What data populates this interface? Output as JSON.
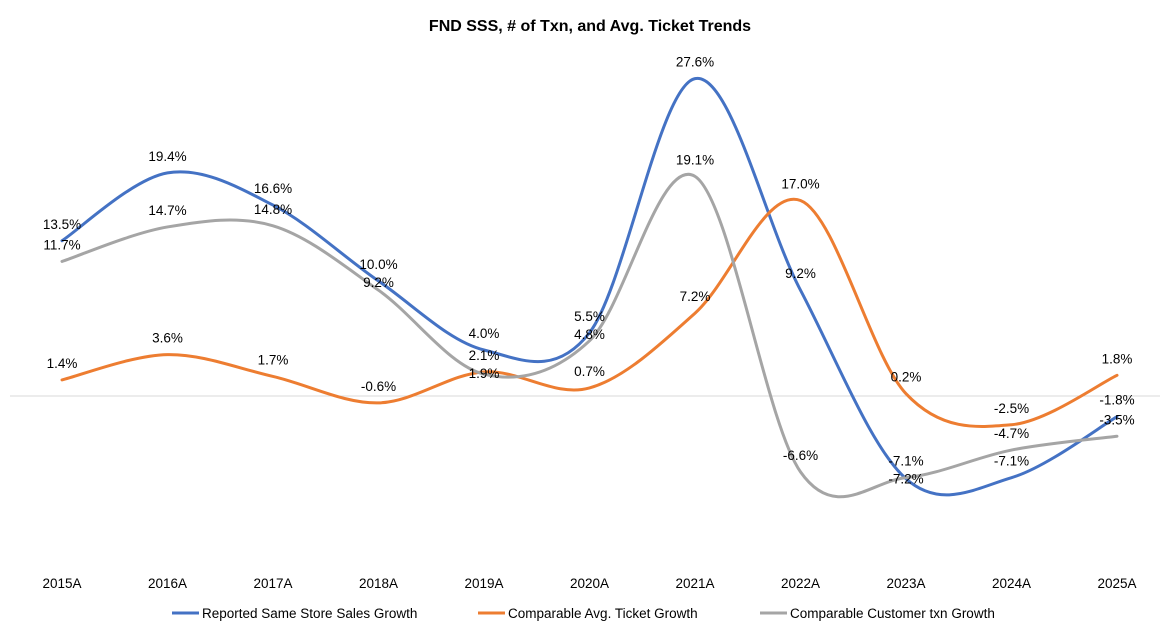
{
  "chart_data": {
    "type": "line",
    "title": "FND SSS, # of Txn, and Avg. Ticket Trends",
    "xlabel": "",
    "ylabel": "",
    "categories": [
      "2015A",
      "2016A",
      "2017A",
      "2018A",
      "2019A",
      "2020A",
      "2021A",
      "2022A",
      "2023A",
      "2024A",
      "2025A"
    ],
    "ylim": [
      -15,
      30
    ],
    "grid": false,
    "smooth": true,
    "legend": "bottom",
    "series": [
      {
        "name": "Reported Same Store Sales Growth",
        "color": "#4472C4",
        "values": [
          13.5,
          19.4,
          16.6,
          10.0,
          4.0,
          5.5,
          27.6,
          9.2,
          -7.2,
          -7.1,
          -1.8
        ]
      },
      {
        "name": "Comparable Avg. Ticket Growth",
        "color": "#ED7D31",
        "values": [
          1.4,
          3.6,
          1.7,
          -0.6,
          2.1,
          0.7,
          7.2,
          17.0,
          0.2,
          -2.5,
          1.8
        ]
      },
      {
        "name": "Comparable Customer txn Growth",
        "color": "#A5A5A5",
        "values": [
          11.7,
          14.7,
          14.8,
          9.2,
          1.9,
          4.8,
          19.1,
          -6.6,
          -7.1,
          -4.7,
          -3.5
        ]
      }
    ]
  }
}
